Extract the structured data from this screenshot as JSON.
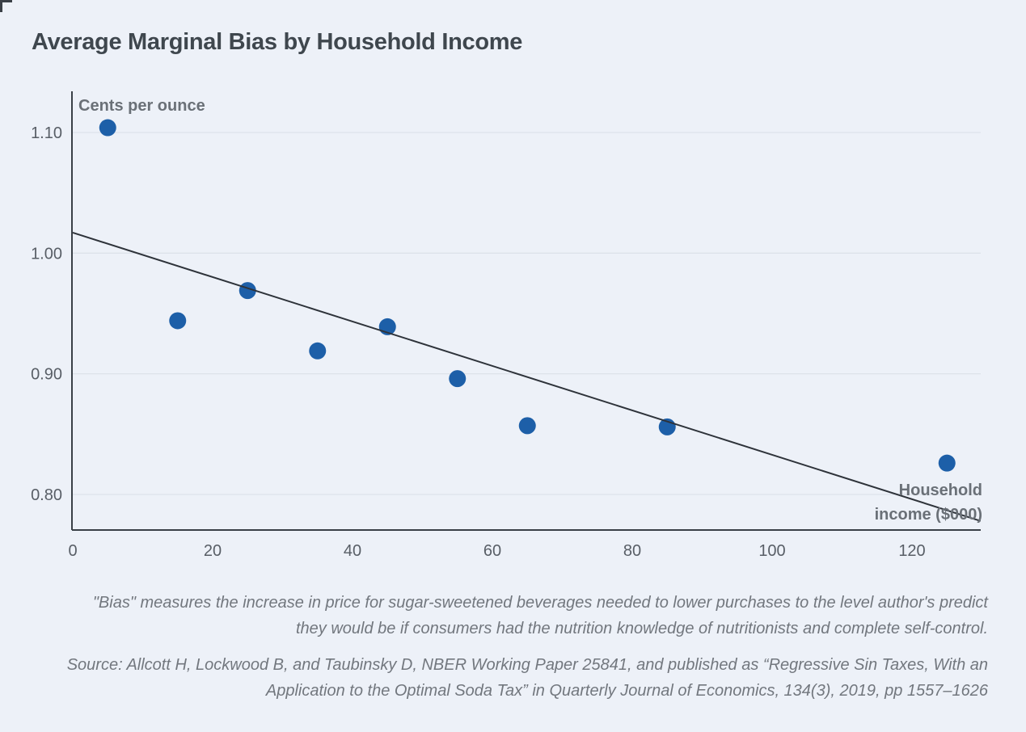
{
  "title": "Average Marginal Bias by Household Income",
  "chart_data": {
    "type": "scatter",
    "title": "Average Marginal Bias by Household Income",
    "y_axis_label": "Cents per ounce",
    "x_axis_label": "Household income ($000)",
    "x_axis_label_lines": [
      "Household",
      "income ($000)"
    ],
    "xlabel_units": "thousands of dollars",
    "ylabel_units": "cents per ounce",
    "xlim": [
      0,
      130
    ],
    "ylim": [
      0.77,
      1.135
    ],
    "grid": "horizontal",
    "legend": "none",
    "x_ticks": [
      0,
      20,
      40,
      60,
      80,
      100,
      120
    ],
    "y_ticks": [
      {
        "label": "1.10",
        "value": 1.1
      },
      {
        "label": "1.00",
        "value": 1.0
      },
      {
        "label": "0.90",
        "value": 0.9
      },
      {
        "label": "0.80",
        "value": 0.8
      }
    ],
    "points": [
      {
        "x": 5,
        "y": 1.104
      },
      {
        "x": 15,
        "y": 0.944
      },
      {
        "x": 25,
        "y": 0.969
      },
      {
        "x": 35,
        "y": 0.919
      },
      {
        "x": 45,
        "y": 0.939
      },
      {
        "x": 55,
        "y": 0.896
      },
      {
        "x": 65,
        "y": 0.857
      },
      {
        "x": 85,
        "y": 0.856
      },
      {
        "x": 125,
        "y": 0.826
      }
    ],
    "trend_line": {
      "x1": 0,
      "v1": 1.017,
      "x2": 129.8,
      "v2": 0.778
    },
    "colors": {
      "background": "#edf1f8",
      "point": "#1d5fa8",
      "trend": "#2e333a",
      "axis": "#3a4047",
      "grid": "#dde2ea",
      "tick_label": "#585e66",
      "axis_title": "#6a7077",
      "title": "#3f474e",
      "note": "#72777e"
    }
  },
  "footnote": {
    "line1": "\"Bias\" measures the increase in price for sugar-sweetened beverages needed to lower purchases to the level author's predict",
    "line2": "they would be if consumers had the nutrition knowledge of nutritionists and complete self-control."
  },
  "source": {
    "line1": "Source: Allcott H, Lockwood B, and Taubinsky D, NBER Working Paper 25841, and published as “Regressive Sin Taxes, With an",
    "line2": "Application to the Optimal Soda Tax” in Quarterly Journal of Economics, 134(3), 2019, pp 1557–1626"
  }
}
